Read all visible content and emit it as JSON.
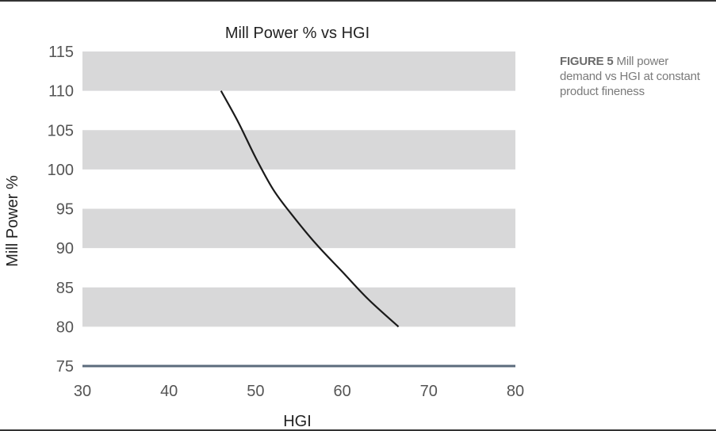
{
  "chart_data": {
    "type": "line",
    "title": "Mill Power % vs HGI",
    "xlabel": "HGI",
    "ylabel": "Mill Power %",
    "xlim": [
      30,
      80
    ],
    "ylim": [
      75,
      115
    ],
    "xticks": [
      30,
      40,
      50,
      60,
      70,
      80
    ],
    "yticks": [
      75,
      80,
      85,
      90,
      95,
      100,
      105,
      110,
      115
    ],
    "bands": [
      [
        80,
        85
      ],
      [
        90,
        95
      ],
      [
        100,
        105
      ],
      [
        110,
        115
      ]
    ],
    "grid": false,
    "series": [
      {
        "x": [
          46,
          48,
          50,
          52,
          54,
          57,
          60,
          63,
          66.5
        ],
        "y": [
          110,
          106,
          101.5,
          97.5,
          94.5,
          90.5,
          87,
          83.5,
          80
        ]
      }
    ]
  },
  "caption": {
    "figure_label": "FIGURE 5",
    "text": "Mill power demand vs HGI at constant product fineness"
  },
  "colors": {
    "band": "#d8d8d9",
    "line": "#1a1a1a",
    "axis": "#5b6b7c",
    "text": "#555555",
    "caption": "#7a7a7a"
  }
}
